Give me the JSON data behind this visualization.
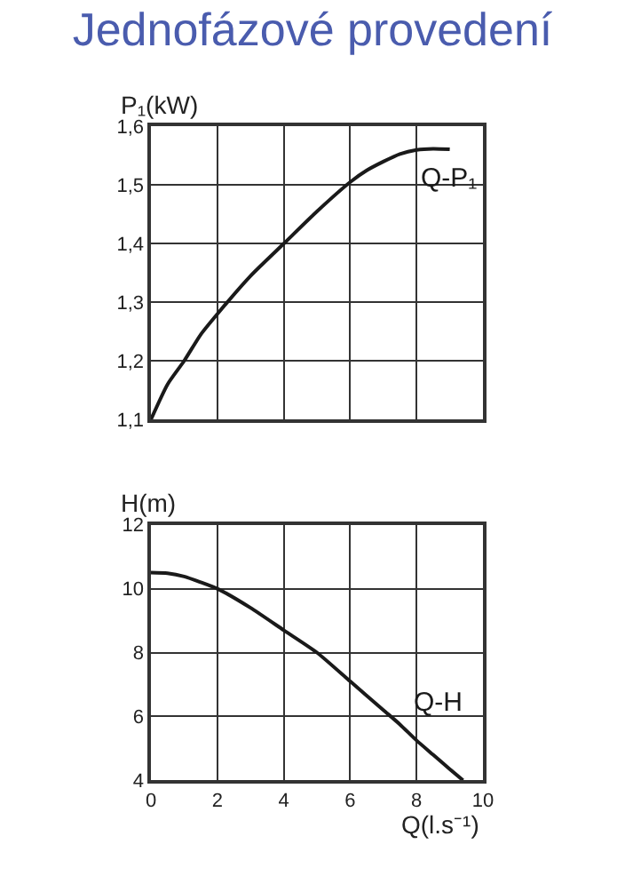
{
  "chart_data": [
    {
      "type": "line",
      "title": "Jednofázové provedení",
      "ylabel": "P₁(kW)",
      "tick_labels": "y",
      "grid": true,
      "marker": "none",
      "line_style": "solid",
      "xlim": [
        0,
        10
      ],
      "xticks": [
        0,
        2,
        4,
        6,
        8,
        10
      ],
      "ylim": [
        1.1,
        1.6
      ],
      "yticks": [
        {
          "value": 1.1,
          "label": "1,1"
        },
        {
          "value": 1.2,
          "label": "1,2"
        },
        {
          "value": 1.3,
          "label": "1,3"
        },
        {
          "value": 1.4,
          "label": "1,4"
        },
        {
          "value": 1.5,
          "label": "1,5"
        },
        {
          "value": 1.6,
          "label": "1,6"
        }
      ],
      "series": [
        {
          "name": "Q-P₁",
          "color": "#1a1a1a",
          "x": [
            0,
            0.5,
            1,
            1.5,
            2,
            3,
            4,
            5,
            6,
            6.5,
            7,
            7.5,
            8,
            8.5,
            9
          ],
          "values": [
            1.1,
            1.16,
            1.2,
            1.245,
            1.28,
            1.345,
            1.4,
            1.455,
            1.505,
            1.525,
            1.54,
            1.553,
            1.56,
            1.562,
            1.561
          ]
        }
      ]
    },
    {
      "type": "line",
      "ylabel": "H(m)",
      "xlabel": "Q(l.s⁻¹)",
      "grid": true,
      "marker": "none",
      "line_style": "solid",
      "xlim": [
        0,
        10
      ],
      "xticks": [
        0,
        2,
        4,
        6,
        8,
        10
      ],
      "ylim": [
        4,
        12
      ],
      "yticks": [
        4,
        6,
        8,
        10,
        12
      ],
      "series": [
        {
          "name": "Q-H",
          "color": "#1a1a1a",
          "x": [
            0,
            0.5,
            1,
            1.5,
            2,
            3,
            4,
            5,
            6,
            7,
            7.5,
            8,
            8.5,
            9,
            9.4
          ],
          "values": [
            10.5,
            10.48,
            10.38,
            10.2,
            10.0,
            9.4,
            8.7,
            8.0,
            7.1,
            6.2,
            5.75,
            5.25,
            4.8,
            4.35,
            4.0
          ]
        }
      ]
    }
  ]
}
